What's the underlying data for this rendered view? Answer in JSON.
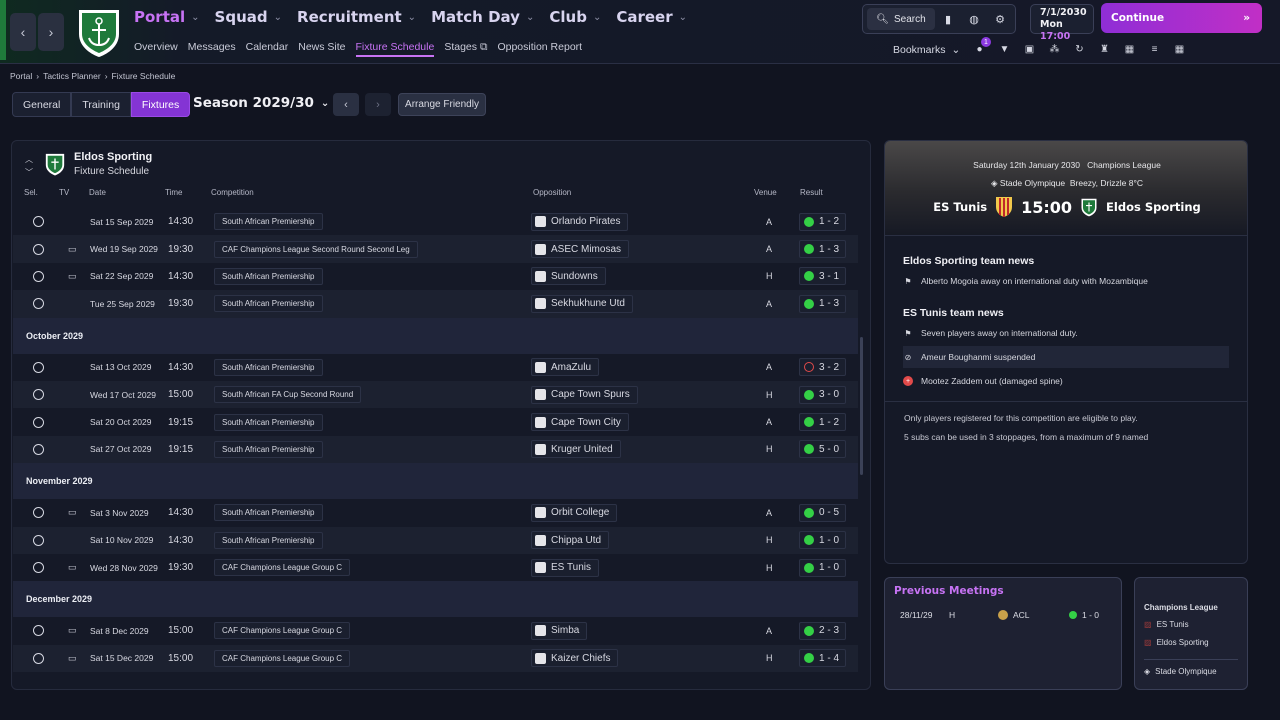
{
  "nav": {
    "main": [
      {
        "label": "Portal",
        "active": true
      },
      {
        "label": "Squad",
        "active": false
      },
      {
        "label": "Recruitment",
        "active": false
      },
      {
        "label": "Match Day",
        "active": false
      },
      {
        "label": "Club",
        "active": false
      },
      {
        "label": "Career",
        "active": false
      }
    ],
    "sub": [
      "Overview",
      "Messages",
      "Calendar",
      "News Site",
      "Fixture Schedule",
      "Stages",
      "Opposition Report"
    ],
    "sub_active": "Fixture Schedule"
  },
  "toolbar": {
    "search_label": "Search",
    "date": "7/1/2030",
    "day": "Mon",
    "time": "17:00",
    "continue_label": "Continue",
    "bookmarks_label": "Bookmarks",
    "notif_count": "1"
  },
  "breadcrumb": [
    "Portal",
    "Tactics Planner",
    "Fixture Schedule"
  ],
  "tabs": [
    "General",
    "Training",
    "Fixtures"
  ],
  "season": "Season 2029/30",
  "arrange_label": "Arrange Friendly",
  "panel": {
    "team": "Eldos Sporting",
    "subtitle": "Fixture Schedule"
  },
  "columns": {
    "sel": "Sel.",
    "tv": "TV",
    "date": "Date",
    "time": "Time",
    "competition": "Competition",
    "opposition": "Opposition",
    "venue": "Venue",
    "result": "Result"
  },
  "rows": [
    {
      "type": "fixture",
      "tv": false,
      "date": "Sat 15 Sep 2029",
      "time": "14:30",
      "comp": "South African Premiership",
      "opp": "Orlando Pirates",
      "venue": "A",
      "result": "1 - 2",
      "outcome": "win"
    },
    {
      "type": "fixture",
      "tv": true,
      "date": "Wed 19 Sep 2029",
      "time": "19:30",
      "comp": "CAF Champions League Second Round Second Leg",
      "opp": "ASEC Mimosas",
      "venue": "A",
      "result": "1 - 3",
      "outcome": "win"
    },
    {
      "type": "fixture",
      "tv": true,
      "date": "Sat 22 Sep 2029",
      "time": "14:30",
      "comp": "South African Premiership",
      "opp": "Sundowns",
      "venue": "H",
      "result": "3 - 1",
      "outcome": "win"
    },
    {
      "type": "fixture",
      "tv": false,
      "date": "Tue 25 Sep 2029",
      "time": "19:30",
      "comp": "South African Premiership",
      "opp": "Sekhukhune Utd",
      "venue": "A",
      "result": "1 - 3",
      "outcome": "win"
    },
    {
      "type": "month",
      "label": "October 2029"
    },
    {
      "type": "fixture",
      "tv": false,
      "date": "Sat 13 Oct 2029",
      "time": "14:30",
      "comp": "South African Premiership",
      "opp": "AmaZulu",
      "venue": "A",
      "result": "3 - 2",
      "outcome": "loss"
    },
    {
      "type": "fixture",
      "tv": false,
      "date": "Wed 17 Oct 2029",
      "time": "15:00",
      "comp": "South African FA Cup Second Round",
      "opp": "Cape Town Spurs",
      "venue": "H",
      "result": "3 - 0",
      "outcome": "win"
    },
    {
      "type": "fixture",
      "tv": false,
      "date": "Sat 20 Oct 2029",
      "time": "19:15",
      "comp": "South African Premiership",
      "opp": "Cape Town City",
      "venue": "A",
      "result": "1 - 2",
      "outcome": "win"
    },
    {
      "type": "fixture",
      "tv": false,
      "date": "Sat 27 Oct 2029",
      "time": "19:15",
      "comp": "South African Premiership",
      "opp": "Kruger United",
      "venue": "H",
      "result": "5 - 0",
      "outcome": "win"
    },
    {
      "type": "month",
      "label": "November 2029"
    },
    {
      "type": "fixture",
      "tv": true,
      "date": "Sat 3 Nov 2029",
      "time": "14:30",
      "comp": "South African Premiership",
      "opp": "Orbit College",
      "venue": "A",
      "result": "0 - 5",
      "outcome": "win"
    },
    {
      "type": "fixture",
      "tv": false,
      "date": "Sat 10 Nov 2029",
      "time": "14:30",
      "comp": "South African Premiership",
      "opp": "Chippa Utd",
      "venue": "H",
      "result": "1 - 0",
      "outcome": "win"
    },
    {
      "type": "fixture",
      "tv": true,
      "date": "Wed 28 Nov 2029",
      "time": "19:30",
      "comp": "CAF Champions League Group C",
      "opp": "ES Tunis",
      "venue": "H",
      "result": "1 - 0",
      "outcome": "win"
    },
    {
      "type": "month",
      "label": "December 2029"
    },
    {
      "type": "fixture",
      "tv": true,
      "date": "Sat 8 Dec 2029",
      "time": "15:00",
      "comp": "CAF Champions League Group C",
      "opp": "Simba",
      "venue": "A",
      "result": "2 - 3",
      "outcome": "win"
    },
    {
      "type": "fixture",
      "tv": true,
      "date": "Sat 15 Dec 2029",
      "time": "15:00",
      "comp": "CAF Champions League Group C",
      "opp": "Kaizer Chiefs",
      "venue": "H",
      "result": "1 - 4",
      "outcome": "win"
    }
  ],
  "match": {
    "date_line": "Saturday 12th January 2030",
    "competition": "Champions League",
    "venue": "Stade Olympique",
    "weather": "Breezy, Drizzle 8°C",
    "home": "ES Tunis",
    "kickoff": "15:00",
    "away": "Eldos Sporting"
  },
  "news": {
    "eldos_title": "Eldos Sporting team news",
    "eldos_items": [
      "Alberto Mogoia away on international duty with Mozambique"
    ],
    "tunis_title": "ES Tunis team news",
    "tunis_items": [
      "Seven players away on international duty.",
      "Ameur Boughanmi suspended",
      "Mootez Zaddem out (damaged spine)"
    ]
  },
  "notes": [
    "Only players registered for this competition are eligible to play.",
    "5 subs can be used in 3 stoppages, from a maximum of 9 named"
  ],
  "previous": {
    "title": "Previous Meetings",
    "date": "28/11/29",
    "venue": "H",
    "comp": "ACL",
    "result": "1 - 0"
  },
  "key": {
    "competition": "Champions League",
    "team1": "ES Tunis",
    "team2": "Eldos Sporting",
    "stadium": "Stade Olympique"
  },
  "colors": {
    "accent": "#c773f4",
    "win": "#34d046",
    "loss": "#e14a4a",
    "continue": "#a92fd2"
  }
}
